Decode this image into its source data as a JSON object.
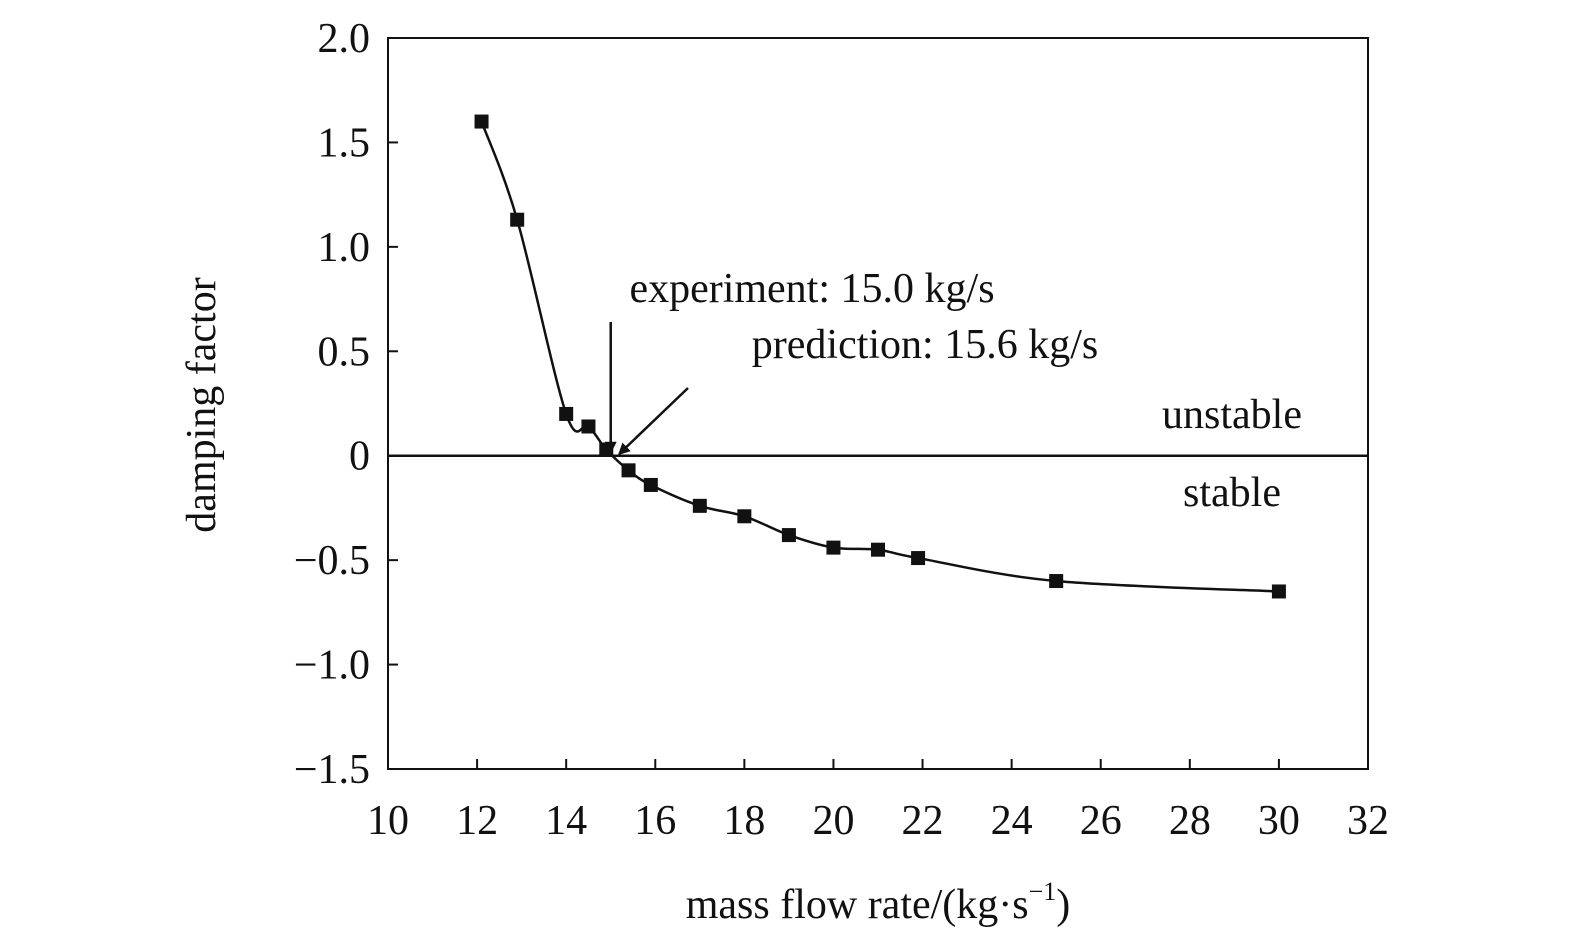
{
  "chart_data": {
    "type": "line",
    "title": "",
    "xlabel": "mass flow rate/(kg·s",
    "xlabel_sup": "−1",
    "xlabel_close": ")",
    "ylabel": "damping factor",
    "xlim": [
      10,
      32
    ],
    "ylim": [
      -1.5,
      2.0
    ],
    "x_ticks": [
      10,
      12,
      14,
      16,
      18,
      20,
      22,
      24,
      26,
      28,
      30,
      32
    ],
    "x_tick_labels": [
      "10",
      "12",
      "14",
      "16",
      "18",
      "20",
      "22",
      "24",
      "26",
      "28",
      "30",
      "32"
    ],
    "y_ticks": [
      2.0,
      1.5,
      1.0,
      0.5,
      0,
      -0.5,
      -1.0,
      -1.5
    ],
    "y_tick_labels": [
      "2.0",
      "1.5",
      "1.0",
      "0.5",
      "0",
      "−0.5",
      "−1.0",
      "−1.5"
    ],
    "grid": false,
    "reference_line_y": 0,
    "marker": "square",
    "color": "#111111",
    "series": [
      {
        "x": [
          12.1,
          12.9,
          14.0,
          14.5,
          14.9,
          15.4,
          15.9,
          17.0,
          18.0,
          19.0,
          20.0,
          21.0,
          21.9,
          25.0,
          30.0
        ],
        "y": [
          1.6,
          1.13,
          0.2,
          0.14,
          0.03,
          -0.07,
          -0.14,
          -0.24,
          -0.29,
          -0.38,
          -0.44,
          -0.45,
          -0.49,
          -0.6,
          -0.65
        ]
      }
    ],
    "annotations": [
      {
        "text": "experiment: 15.0 kg/s",
        "arrow_to": [
          15.0,
          0.0
        ]
      },
      {
        "text": "prediction: 15.6 kg/s",
        "arrow_to": [
          15.15,
          0.0
        ]
      }
    ],
    "region_labels": {
      "above": "unstable",
      "below": "stable"
    }
  }
}
